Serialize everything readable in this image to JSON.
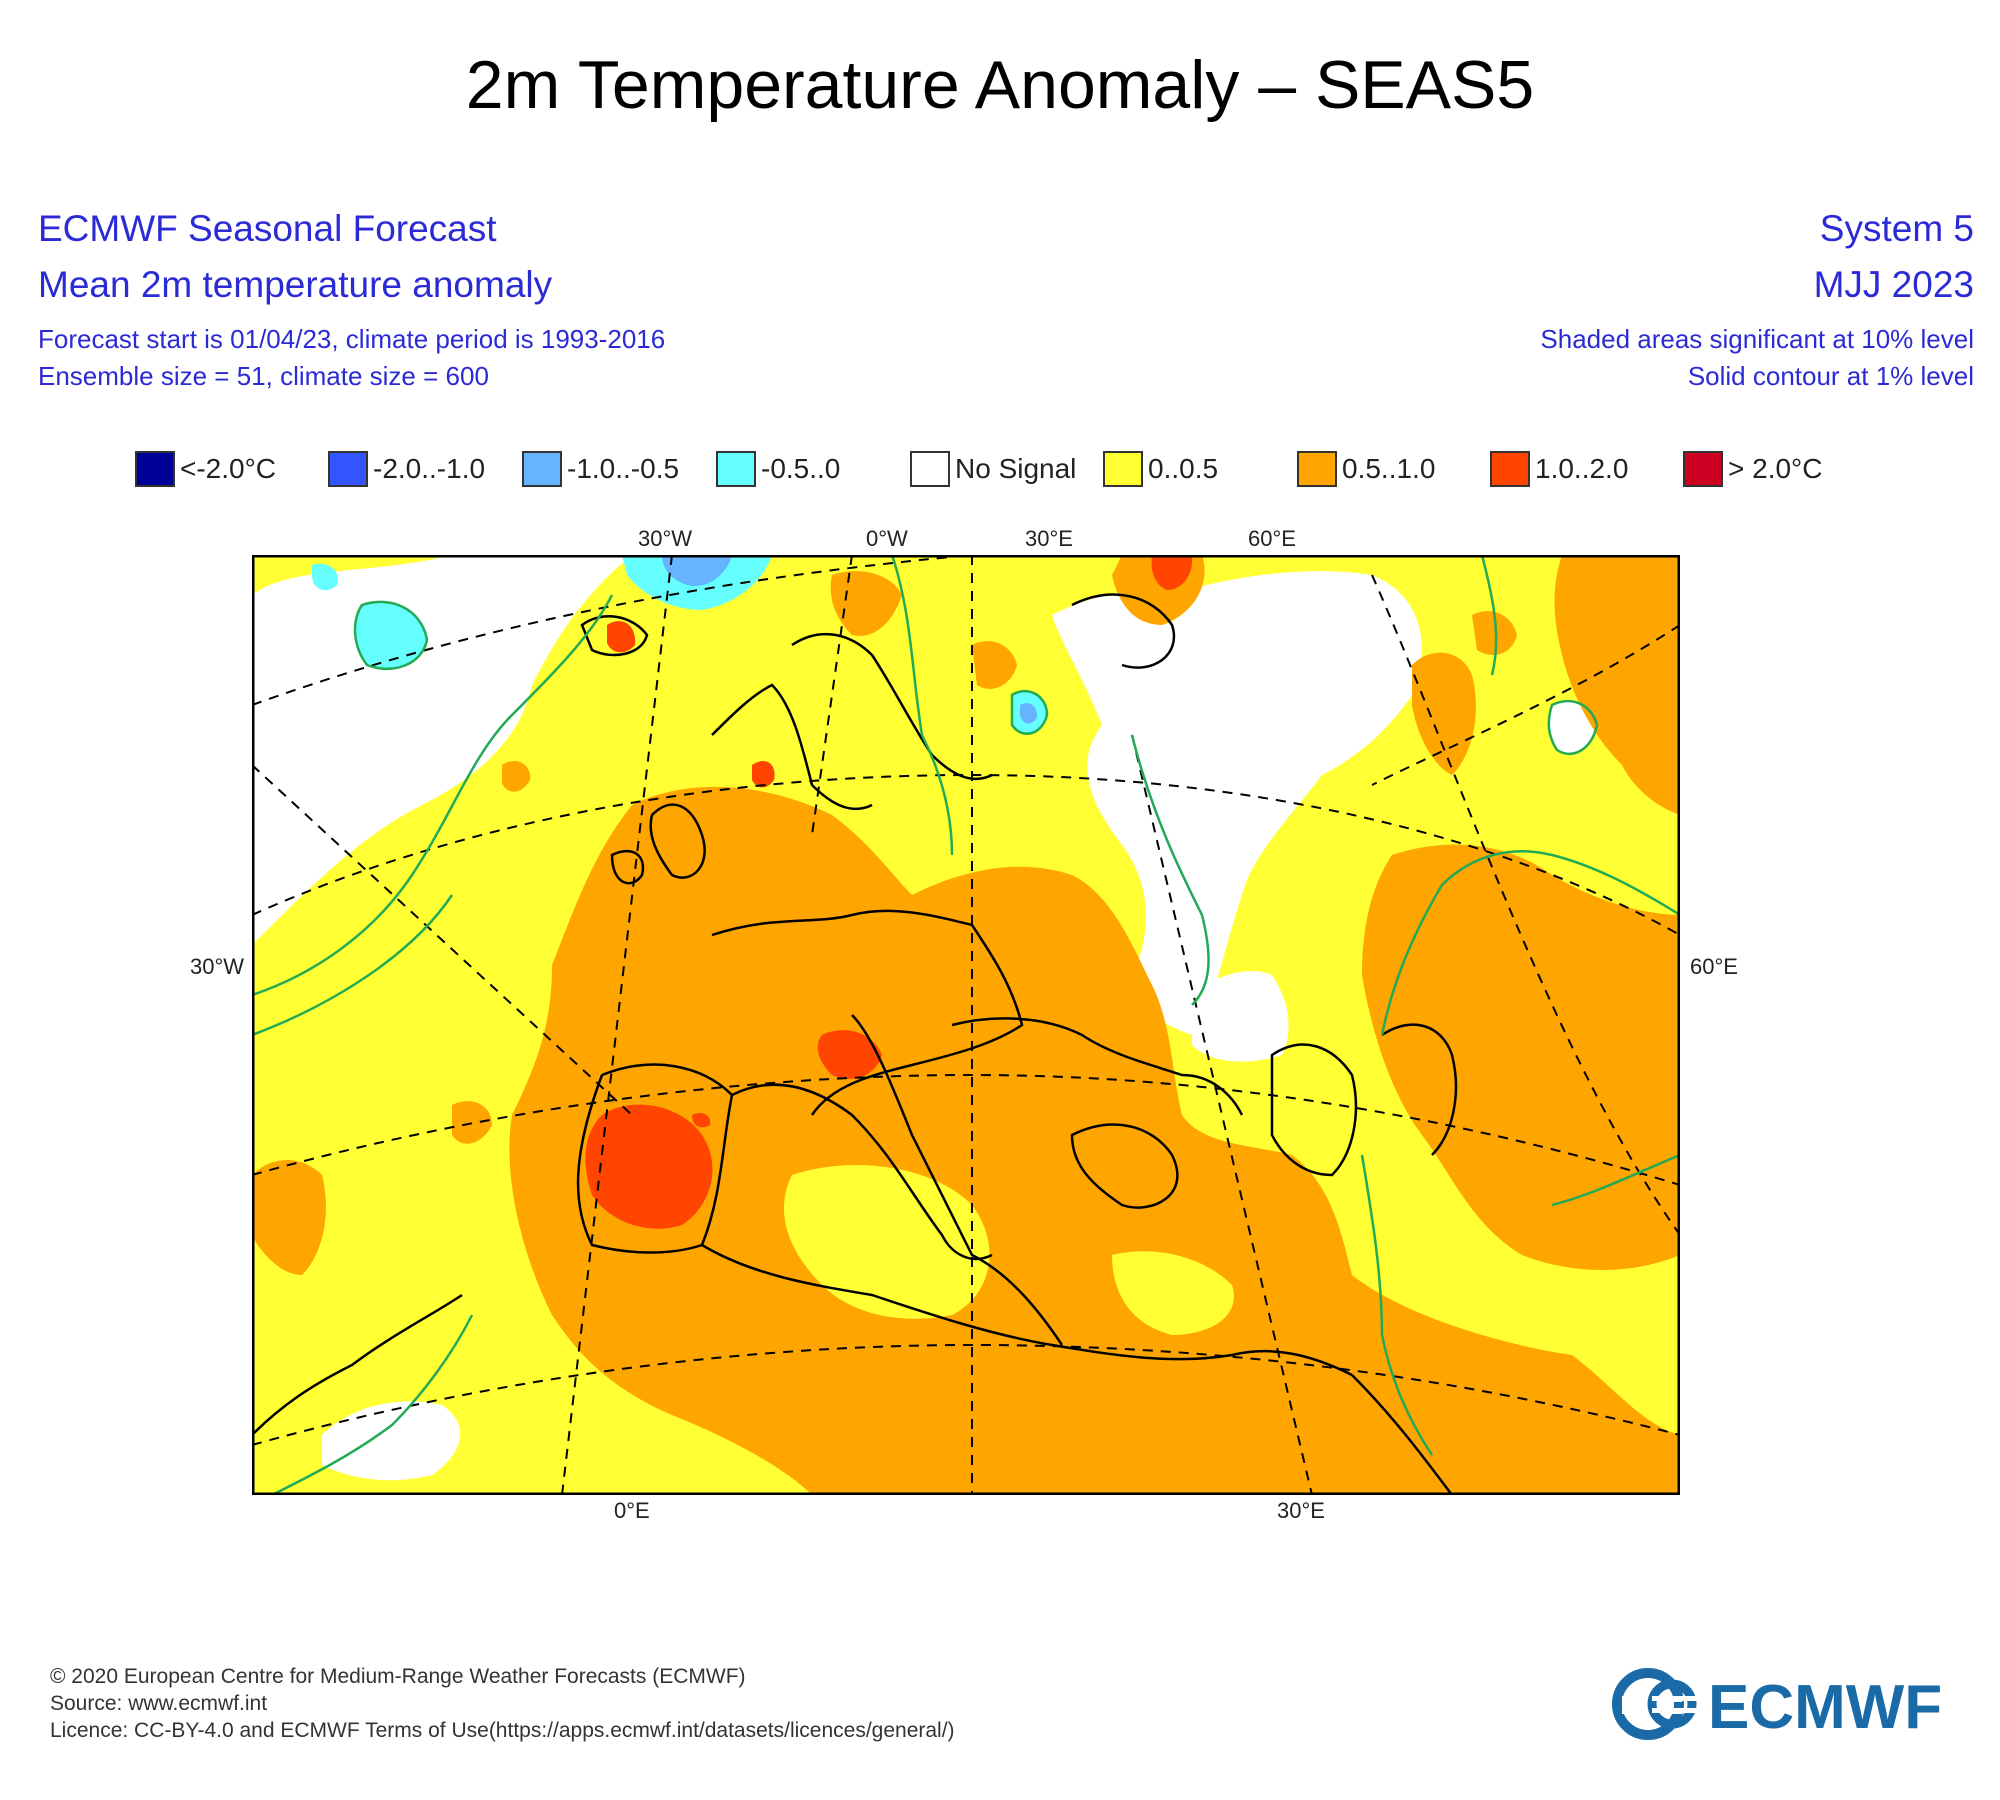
{
  "title": "2m Temperature Anomaly – SEAS5",
  "header": {
    "left": {
      "line1": "ECMWF Seasonal Forecast",
      "line2": "Mean 2m temperature anomaly",
      "line3": "Forecast start is 01/04/23, climate period is 1993-2016",
      "line4": "Ensemble size = 51, climate size = 600"
    },
    "right": {
      "line1": "System 5",
      "line2": "MJJ 2023",
      "line3": "Shaded areas significant at 10% level",
      "line4": "Solid contour at 1% level"
    }
  },
  "legend": [
    {
      "label": "<-2.0°C",
      "color": "#000099"
    },
    {
      "label": "-2.0..-1.0",
      "color": "#3355ff"
    },
    {
      "label": "-1.0..-0.5",
      "color": "#66b3ff"
    },
    {
      "label": "-0.5..0",
      "color": "#66ffff"
    },
    {
      "label": "No Signal",
      "color": "#ffffff"
    },
    {
      "label": "0..0.5",
      "color": "#ffff33"
    },
    {
      "label": "0.5..1.0",
      "color": "#ffa500"
    },
    {
      "label": "1.0..2.0",
      "color": "#ff4500"
    },
    {
      "label": "> 2.0°C",
      "color": "#cc0022"
    }
  ],
  "grid_labels": {
    "top": [
      "30°W",
      "0°W",
      "30°E",
      "60°E"
    ],
    "left": "30°W",
    "right": "60°E",
    "bottom": [
      "0°E",
      "30°E"
    ]
  },
  "colors": {
    "yellow": "#ffff33",
    "orange": "#ffa500",
    "red": "#ff4500",
    "cyan": "#66ffff",
    "lightblue": "#66b3ff",
    "blue": "#3355ff",
    "contour": "#22aa55",
    "coast": "#000000",
    "header_blue": "#2b2bd6",
    "logo_blue": "#1a6aa8"
  },
  "footer": {
    "line1": "© 2020 European Centre for Medium-Range Weather Forecasts (ECMWF)",
    "line2": "Source: www.ecmwf.int",
    "line3": "Licence: CC-BY-4.0 and ECMWF Terms of Use(https://apps.ecmwf.int/datasets/licences/general/)"
  },
  "logo": {
    "text": "ECMWF"
  }
}
